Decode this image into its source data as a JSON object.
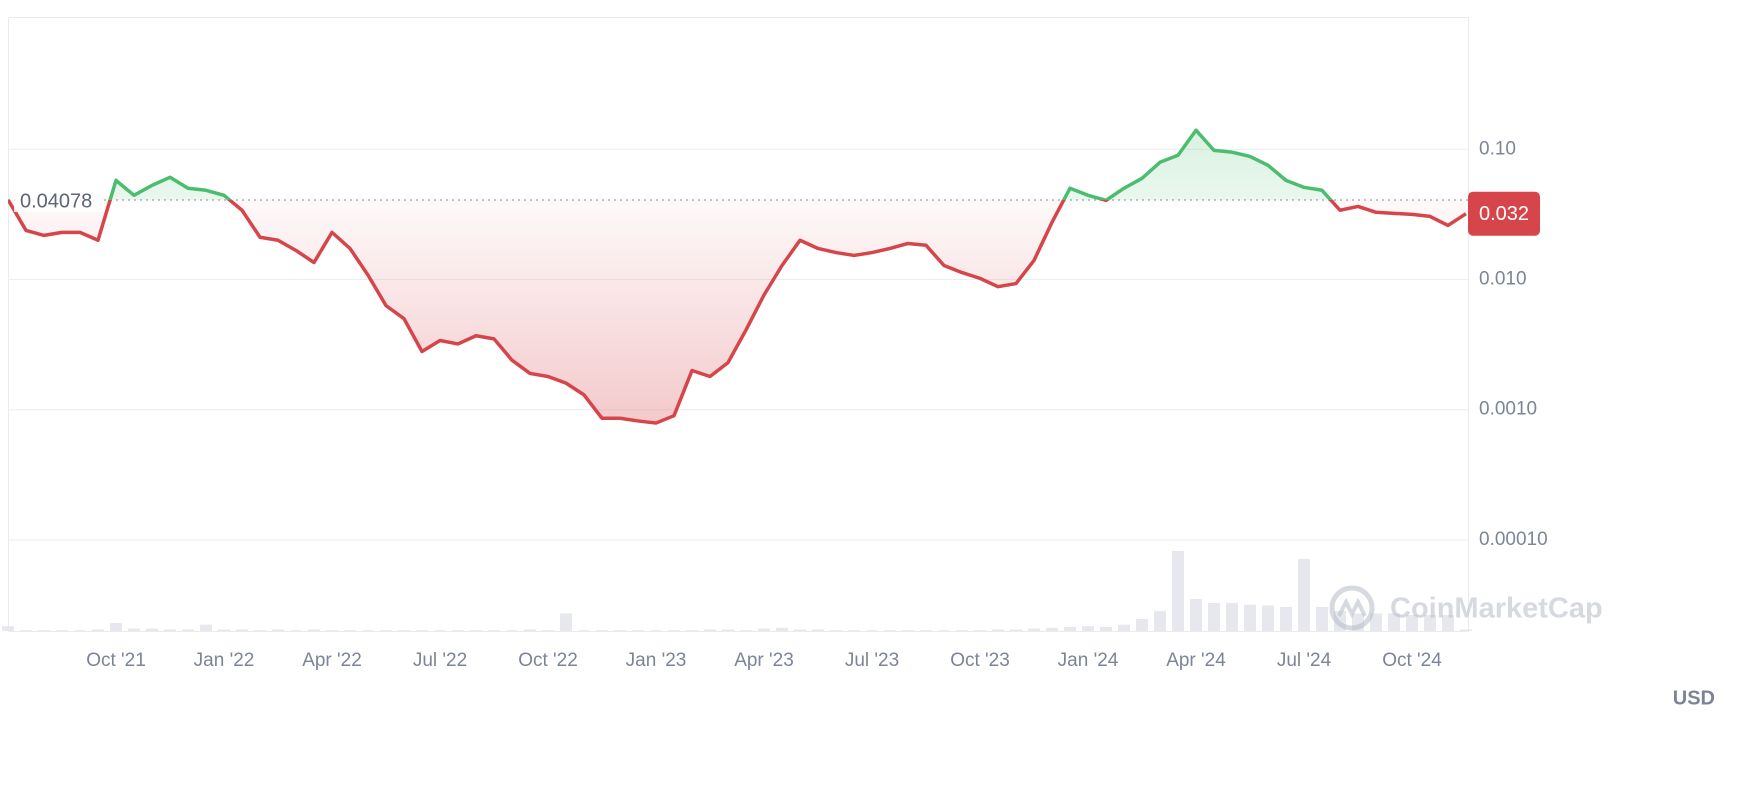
{
  "chart_data": {
    "type": "line",
    "scale": "log",
    "categories": [
      null,
      null,
      null,
      null,
      null,
      null,
      "Oct '21",
      null,
      null,
      null,
      null,
      null,
      "Jan '22",
      null,
      null,
      null,
      null,
      null,
      "Apr '22",
      null,
      null,
      null,
      null,
      null,
      "Jul '22",
      null,
      null,
      null,
      null,
      null,
      "Oct '22",
      null,
      null,
      null,
      null,
      null,
      "Jan '23",
      null,
      null,
      null,
      null,
      null,
      "Apr '23",
      null,
      null,
      null,
      null,
      null,
      "Jul '23",
      null,
      null,
      null,
      null,
      null,
      "Oct '23",
      null,
      null,
      null,
      null,
      null,
      "Jan '24",
      null,
      null,
      null,
      null,
      null,
      "Apr '24",
      null,
      null,
      null,
      null,
      null,
      "Jul '24",
      null,
      null,
      null,
      null,
      null,
      "Oct '24",
      null,
      null,
      null
    ],
    "series": [
      {
        "values": [
          0.041,
          0.0238,
          0.0218,
          0.023,
          0.023,
          0.02,
          0.0577,
          0.0443,
          0.0528,
          0.0609,
          0.0502,
          0.0484,
          0.0443,
          0.034,
          0.0211,
          0.02,
          0.0167,
          0.0135,
          0.023,
          0.0173,
          0.0108,
          0.0063,
          0.005,
          0.0028,
          0.0034,
          0.0032,
          0.0037,
          0.0035,
          0.0024,
          0.0019,
          0.0018,
          0.0016,
          0.0013,
          0.00086,
          0.00086,
          0.00082,
          0.00079,
          0.0009,
          0.002,
          0.0018,
          0.0023,
          0.0041,
          0.0076,
          0.0128,
          0.02,
          0.0173,
          0.0161,
          0.0153,
          0.0161,
          0.0173,
          0.0189,
          0.0183,
          0.0128,
          0.0113,
          0.0102,
          0.0088,
          0.0093,
          0.014,
          0.0275,
          0.0502,
          0.0443,
          0.0405,
          0.0502,
          0.0598,
          0.0794,
          0.0899,
          0.14,
          0.098,
          0.095,
          0.088,
          0.0753,
          0.0577,
          0.051,
          0.0484,
          0.034,
          0.0364,
          0.0328,
          0.0322,
          0.0316,
          0.0305,
          0.026,
          0.032
        ],
        "volume": [
          6,
          1,
          1,
          1,
          1,
          2,
          10,
          3,
          3,
          2,
          2,
          8,
          2,
          2,
          1,
          2,
          1,
          2,
          1,
          1,
          1,
          1,
          1,
          1,
          1,
          1,
          1,
          1,
          1,
          2,
          1,
          22,
          1,
          1,
          1,
          1,
          1,
          1,
          1,
          2,
          2,
          1,
          3,
          4,
          2,
          2,
          1,
          1,
          1,
          1,
          1,
          1,
          1,
          1,
          1,
          2,
          2,
          3,
          4,
          5,
          6,
          5,
          8,
          15,
          25,
          100,
          40,
          35,
          35,
          33,
          32,
          30,
          90,
          30,
          25,
          22,
          22,
          22,
          20,
          20,
          20,
          2
        ]
      }
    ],
    "baseline": 0.04078,
    "up_color": "#4cbd6e",
    "down_color": "#d6454a",
    "ylim": [
      2e-05,
      1
    ],
    "yticks": [
      {
        "value": 0.0001,
        "label": "0.00010"
      },
      {
        "value": 0.001,
        "label": "0.0010"
      },
      {
        "value": 0.01,
        "label": "0.010"
      },
      {
        "value": 0.1,
        "label": "0.10"
      }
    ],
    "grid": true,
    "currency": "USD",
    "watermark": "CoinMarketCap"
  }
}
